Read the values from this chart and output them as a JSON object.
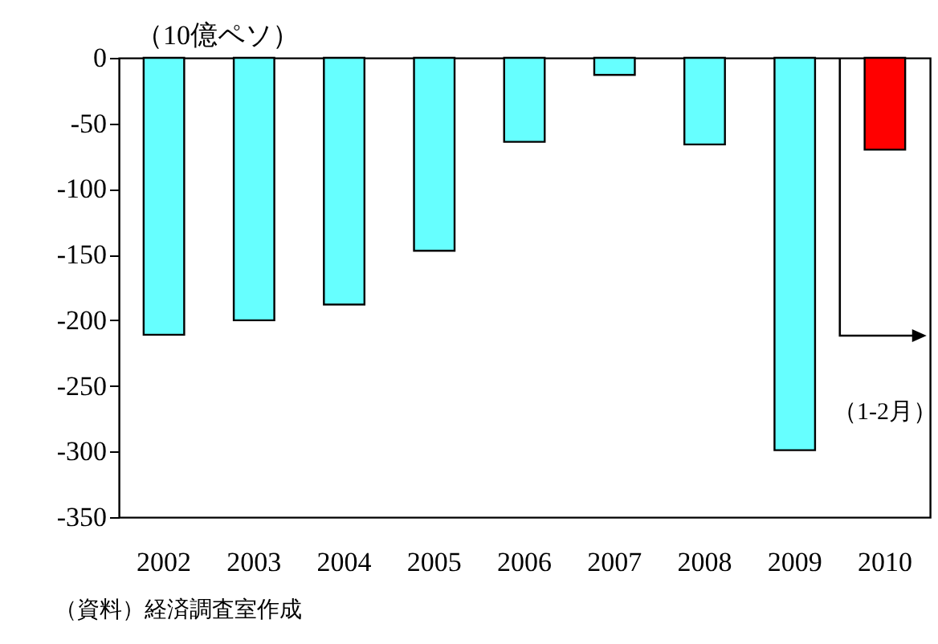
{
  "chart_data": {
    "type": "bar",
    "ylabel": "（10億ペソ）",
    "categories": [
      "2002",
      "2003",
      "2004",
      "2005",
      "2006",
      "2007",
      "2008",
      "2009",
      "2010"
    ],
    "values": [
      -211,
      -200,
      -188,
      -147,
      -64,
      -13,
      -66,
      -299,
      -70
    ],
    "colors": [
      "#66ffff",
      "#66ffff",
      "#66ffff",
      "#66ffff",
      "#66ffff",
      "#66ffff",
      "#66ffff",
      "#66ffff",
      "#ff0000"
    ],
    "ylim": [
      -350,
      0
    ],
    "yticks": [
      -350,
      -300,
      -250,
      -200,
      -150,
      -100,
      -50,
      0
    ],
    "grid": false,
    "annotations": [
      "（1-2月）",
      "（資料）経済調査室作成"
    ]
  }
}
